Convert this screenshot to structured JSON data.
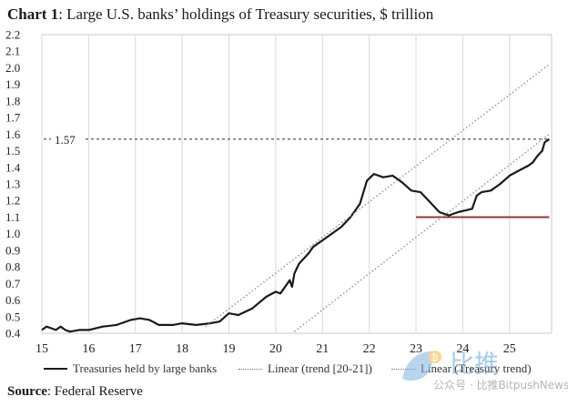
{
  "header": {
    "title_bold": "Chart 1",
    "title_rest": ": Large U.S. banks’ holdings of Treasury securities, $ trillion"
  },
  "source": {
    "label": "Source",
    "text": ": Federal Reserve"
  },
  "legend": [
    {
      "label": "Treasuries held by large banks",
      "style": "solid"
    },
    {
      "label": "Linear (trend [20-21])",
      "style": "dotted"
    },
    {
      "label": "Linear (Treasury trend)",
      "style": "dotted"
    }
  ],
  "watermark": {
    "brand": "比推",
    "sub": "公众号 · 比推BitpushNews"
  },
  "colors": {
    "series": "#1a1a1a",
    "trend": "#8a8a8a",
    "ref_line": "#8b3a3a",
    "grid": "#d9d9d9"
  },
  "chart_data": {
    "type": "line",
    "title": "Large U.S. banks’ holdings of Treasury securities, $ trillion",
    "xlim": [
      15,
      25.9
    ],
    "ylim": [
      0.4,
      2.2
    ],
    "x_ticks": [
      15,
      16,
      17,
      18,
      19,
      20,
      21,
      22,
      23,
      24,
      25
    ],
    "y_ticks": [
      0.4,
      0.5,
      0.6,
      0.7,
      0.8,
      0.9,
      1.0,
      1.1,
      1.2,
      1.3,
      1.4,
      1.5,
      1.6,
      1.7,
      1.8,
      1.9,
      2.0,
      2.1,
      2.2
    ],
    "grid": "vertical",
    "legend_position": "bottom",
    "series": [
      {
        "name": "Treasuries held by large banks",
        "x": [
          15.0,
          15.1,
          15.2,
          15.3,
          15.4,
          15.5,
          15.6,
          15.8,
          16.0,
          16.3,
          16.6,
          16.9,
          17.1,
          17.3,
          17.5,
          17.8,
          18.0,
          18.3,
          18.6,
          18.8,
          19.0,
          19.2,
          19.5,
          19.8,
          20.0,
          20.1,
          20.2,
          20.3,
          20.35,
          20.4,
          20.5,
          20.6,
          20.7,
          20.8,
          21.0,
          21.2,
          21.4,
          21.6,
          21.8,
          21.95,
          22.1,
          22.3,
          22.5,
          22.7,
          22.9,
          23.1,
          23.3,
          23.5,
          23.7,
          23.9,
          24.05,
          24.2,
          24.3,
          24.4,
          24.6,
          24.8,
          25.0,
          25.2,
          25.4,
          25.5,
          25.6,
          25.7,
          25.75,
          25.85
        ],
        "values": [
          0.42,
          0.44,
          0.43,
          0.42,
          0.44,
          0.42,
          0.41,
          0.42,
          0.42,
          0.44,
          0.45,
          0.48,
          0.49,
          0.48,
          0.45,
          0.45,
          0.46,
          0.45,
          0.46,
          0.47,
          0.52,
          0.51,
          0.55,
          0.62,
          0.65,
          0.64,
          0.68,
          0.72,
          0.68,
          0.76,
          0.82,
          0.85,
          0.88,
          0.92,
          0.96,
          1.0,
          1.04,
          1.1,
          1.18,
          1.32,
          1.36,
          1.34,
          1.35,
          1.31,
          1.26,
          1.25,
          1.19,
          1.13,
          1.11,
          1.13,
          1.14,
          1.15,
          1.23,
          1.25,
          1.26,
          1.3,
          1.35,
          1.38,
          1.41,
          1.43,
          1.47,
          1.5,
          1.55,
          1.57
        ]
      },
      {
        "name": "Linear (trend [20-21])",
        "x": [
          18.5,
          25.85
        ],
        "values": [
          0.44,
          2.02
        ]
      },
      {
        "name": "Linear (Treasury trend)",
        "x": [
          20.4,
          25.85
        ],
        "values": [
          0.41,
          1.6
        ]
      }
    ],
    "annotations": [
      {
        "type": "hline",
        "y": 1.57,
        "label": "1.57",
        "style": "dashed",
        "x_range": [
          15,
          25.85
        ]
      },
      {
        "type": "hline",
        "y": 1.1,
        "style": "solid",
        "x_range": [
          23.0,
          25.85
        ]
      }
    ]
  }
}
